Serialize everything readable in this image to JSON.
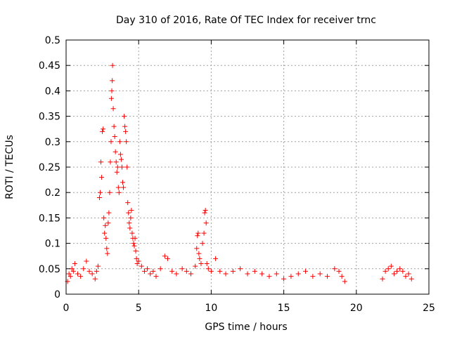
{
  "chart_data": {
    "type": "scatter",
    "title": "Day 310 of 2016, Rate Of TEC Index for receiver trnc",
    "xlabel": "GPS time / hours",
    "ylabel": "ROTI / TECUs",
    "xlim": [
      0,
      25
    ],
    "ylim": [
      0,
      0.5
    ],
    "xticks": [
      0,
      5,
      10,
      15,
      20,
      25
    ],
    "yticks": [
      0,
      0.05,
      0.1,
      0.15,
      0.2,
      0.25,
      0.3,
      0.35,
      0.4,
      0.45,
      0.5
    ],
    "grid": true,
    "marker": "+",
    "color": "#ff0000",
    "series": [
      {
        "name": "ROTI",
        "points": [
          [
            0.1,
            0.025
          ],
          [
            0.2,
            0.04
          ],
          [
            0.3,
            0.035
          ],
          [
            0.4,
            0.05
          ],
          [
            0.5,
            0.045
          ],
          [
            0.6,
            0.06
          ],
          [
            0.8,
            0.04
          ],
          [
            1.0,
            0.035
          ],
          [
            1.2,
            0.05
          ],
          [
            1.4,
            0.065
          ],
          [
            1.6,
            0.045
          ],
          [
            1.8,
            0.04
          ],
          [
            2.0,
            0.03
          ],
          [
            2.1,
            0.045
          ],
          [
            2.2,
            0.055
          ],
          [
            2.3,
            0.19
          ],
          [
            2.35,
            0.2
          ],
          [
            2.4,
            0.26
          ],
          [
            2.45,
            0.23
          ],
          [
            2.5,
            0.32
          ],
          [
            2.55,
            0.325
          ],
          [
            2.6,
            0.15
          ],
          [
            2.65,
            0.12
          ],
          [
            2.7,
            0.135
          ],
          [
            2.75,
            0.11
          ],
          [
            2.8,
            0.09
          ],
          [
            2.85,
            0.08
          ],
          [
            2.9,
            0.14
          ],
          [
            2.95,
            0.16
          ],
          [
            3.0,
            0.2
          ],
          [
            3.05,
            0.26
          ],
          [
            3.1,
            0.3
          ],
          [
            3.12,
            0.385
          ],
          [
            3.15,
            0.4
          ],
          [
            3.18,
            0.42
          ],
          [
            3.2,
            0.45
          ],
          [
            3.25,
            0.365
          ],
          [
            3.3,
            0.33
          ],
          [
            3.35,
            0.31
          ],
          [
            3.4,
            0.28
          ],
          [
            3.45,
            0.26
          ],
          [
            3.5,
            0.24
          ],
          [
            3.55,
            0.25
          ],
          [
            3.6,
            0.21
          ],
          [
            3.65,
            0.2
          ],
          [
            3.7,
            0.3
          ],
          [
            3.75,
            0.275
          ],
          [
            3.8,
            0.265
          ],
          [
            3.85,
            0.25
          ],
          [
            3.9,
            0.22
          ],
          [
            3.95,
            0.21
          ],
          [
            4.0,
            0.35
          ],
          [
            4.05,
            0.33
          ],
          [
            4.1,
            0.32
          ],
          [
            4.15,
            0.3
          ],
          [
            4.2,
            0.25
          ],
          [
            4.25,
            0.18
          ],
          [
            4.3,
            0.16
          ],
          [
            4.35,
            0.14
          ],
          [
            4.4,
            0.13
          ],
          [
            4.45,
            0.15
          ],
          [
            4.5,
            0.165
          ],
          [
            4.55,
            0.12
          ],
          [
            4.6,
            0.11
          ],
          [
            4.65,
            0.1
          ],
          [
            4.7,
            0.095
          ],
          [
            4.75,
            0.11
          ],
          [
            4.8,
            0.085
          ],
          [
            4.85,
            0.07
          ],
          [
            4.9,
            0.06
          ],
          [
            5.0,
            0.065
          ],
          [
            5.2,
            0.055
          ],
          [
            5.4,
            0.045
          ],
          [
            5.6,
            0.05
          ],
          [
            5.8,
            0.04
          ],
          [
            6.0,
            0.045
          ],
          [
            6.2,
            0.035
          ],
          [
            6.5,
            0.05
          ],
          [
            6.8,
            0.075
          ],
          [
            7.0,
            0.07
          ],
          [
            7.3,
            0.045
          ],
          [
            7.6,
            0.04
          ],
          [
            8.0,
            0.05
          ],
          [
            8.3,
            0.045
          ],
          [
            8.6,
            0.04
          ],
          [
            8.9,
            0.055
          ],
          [
            9.0,
            0.09
          ],
          [
            9.05,
            0.115
          ],
          [
            9.1,
            0.12
          ],
          [
            9.15,
            0.08
          ],
          [
            9.2,
            0.07
          ],
          [
            9.3,
            0.06
          ],
          [
            9.4,
            0.1
          ],
          [
            9.5,
            0.12
          ],
          [
            9.55,
            0.16
          ],
          [
            9.6,
            0.165
          ],
          [
            9.65,
            0.14
          ],
          [
            9.7,
            0.06
          ],
          [
            9.8,
            0.05
          ],
          [
            10.0,
            0.045
          ],
          [
            10.3,
            0.07
          ],
          [
            10.6,
            0.045
          ],
          [
            11.0,
            0.04
          ],
          [
            11.5,
            0.045
          ],
          [
            12.0,
            0.05
          ],
          [
            12.5,
            0.04
          ],
          [
            13.0,
            0.045
          ],
          [
            13.5,
            0.04
          ],
          [
            14.0,
            0.035
          ],
          [
            14.5,
            0.04
          ],
          [
            15.0,
            0.03
          ],
          [
            15.5,
            0.035
          ],
          [
            16.0,
            0.04
          ],
          [
            16.5,
            0.045
          ],
          [
            17.0,
            0.035
          ],
          [
            17.5,
            0.04
          ],
          [
            18.0,
            0.035
          ],
          [
            18.5,
            0.05
          ],
          [
            18.8,
            0.045
          ],
          [
            19.0,
            0.035
          ],
          [
            19.2,
            0.025
          ],
          [
            21.8,
            0.03
          ],
          [
            22.0,
            0.045
          ],
          [
            22.2,
            0.05
          ],
          [
            22.4,
            0.055
          ],
          [
            22.6,
            0.04
          ],
          [
            22.8,
            0.045
          ],
          [
            23.0,
            0.05
          ],
          [
            23.2,
            0.045
          ],
          [
            23.4,
            0.035
          ],
          [
            23.6,
            0.04
          ],
          [
            23.8,
            0.03
          ]
        ]
      }
    ]
  }
}
